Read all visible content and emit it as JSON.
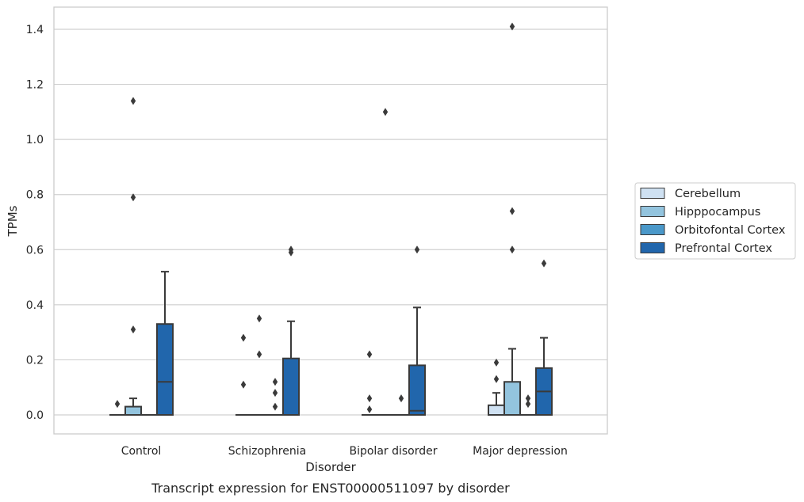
{
  "chart_data": {
    "type": "boxplot",
    "caption": "Transcript expression for ENST00000511097 by disorder",
    "xlabel": "Disorder",
    "ylabel": "TPMs",
    "ylim": [
      -0.07,
      1.48
    ],
    "yticks": [
      0.0,
      0.2,
      0.4,
      0.6,
      0.8,
      1.0,
      1.2,
      1.4
    ],
    "ytick_labels": [
      "0.0",
      "0.2",
      "0.4",
      "0.6",
      "0.8",
      "1.0",
      "1.2",
      "1.4"
    ],
    "grid": "horizontal",
    "legend_position": "outside-right",
    "categories": [
      "Control",
      "Schizophrenia",
      "Bipolar disorder",
      "Major depression"
    ],
    "series": [
      {
        "name": "Cerebellum",
        "color": "#cfe1f2",
        "boxes": [
          {
            "q1": 0,
            "median": 0,
            "q3": 0,
            "whisker_low": 0,
            "whisker_high": 0,
            "outliers": [
              0.04
            ]
          },
          {
            "q1": 0,
            "median": 0,
            "q3": 0,
            "whisker_low": 0,
            "whisker_high": 0,
            "outliers": [
              0.11,
              0.28
            ]
          },
          {
            "q1": 0,
            "median": 0,
            "q3": 0,
            "whisker_low": 0,
            "whisker_high": 0,
            "outliers": [
              0.02,
              0.06,
              0.22
            ]
          },
          {
            "q1": 0,
            "median": 0,
            "q3": 0.035,
            "whisker_low": 0,
            "whisker_high": 0.08,
            "outliers": [
              0.13,
              0.19
            ]
          }
        ]
      },
      {
        "name": "Hipppocampus",
        "color": "#93c4de",
        "boxes": [
          {
            "q1": 0,
            "median": 0,
            "q3": 0.03,
            "whisker_low": 0,
            "whisker_high": 0.06,
            "outliers": [
              0.31,
              0.79,
              1.14
            ]
          },
          {
            "q1": 0,
            "median": 0,
            "q3": 0,
            "whisker_low": 0,
            "whisker_high": 0,
            "outliers": [
              0.22,
              0.35
            ]
          },
          {
            "q1": 0,
            "median": 0,
            "q3": 0,
            "whisker_low": 0,
            "whisker_high": 0,
            "outliers": [
              1.1
            ]
          },
          {
            "q1": 0,
            "median": 0,
            "q3": 0.12,
            "whisker_low": 0,
            "whisker_high": 0.24,
            "outliers": [
              0.6,
              0.74,
              1.41
            ]
          }
        ]
      },
      {
        "name": "Orbitofontal Cortex",
        "color": "#4a98c9",
        "boxes": [
          {
            "q1": 0,
            "median": 0,
            "q3": 0,
            "whisker_low": 0,
            "whisker_high": 0,
            "outliers": []
          },
          {
            "q1": 0,
            "median": 0,
            "q3": 0,
            "whisker_low": 0,
            "whisker_high": 0,
            "outliers": [
              0.03,
              0.08,
              0.12
            ]
          },
          {
            "q1": 0,
            "median": 0,
            "q3": 0,
            "whisker_low": 0,
            "whisker_high": 0,
            "outliers": [
              0.06
            ]
          },
          {
            "q1": 0,
            "median": 0,
            "q3": 0,
            "whisker_low": 0,
            "whisker_high": 0,
            "outliers": [
              0.04,
              0.06
            ]
          }
        ]
      },
      {
        "name": "Prefrontal Cortex",
        "color": "#2166ac",
        "boxes": [
          {
            "q1": 0,
            "median": 0.12,
            "q3": 0.33,
            "whisker_low": 0,
            "whisker_high": 0.52,
            "outliers": []
          },
          {
            "q1": 0,
            "median": 0,
            "q3": 0.205,
            "whisker_low": 0,
            "whisker_high": 0.34,
            "outliers": [
              0.59,
              0.6
            ]
          },
          {
            "q1": 0,
            "median": 0.015,
            "q3": 0.18,
            "whisker_low": 0,
            "whisker_high": 0.39,
            "outliers": [
              0.6
            ]
          },
          {
            "q1": 0,
            "median": 0.085,
            "q3": 0.17,
            "whisker_low": 0,
            "whisker_high": 0.28,
            "outliers": [
              0.55
            ]
          }
        ]
      }
    ]
  }
}
